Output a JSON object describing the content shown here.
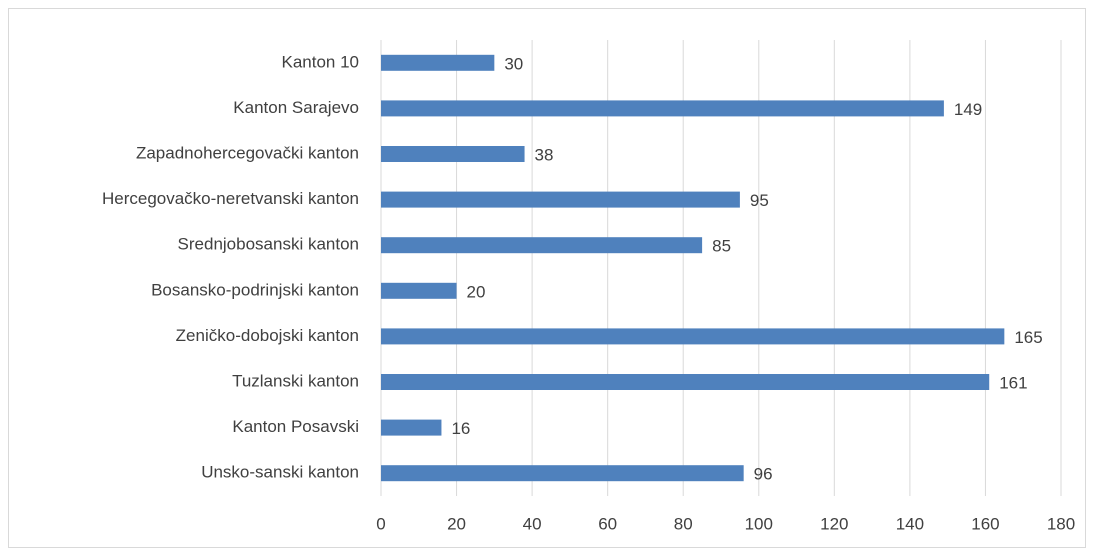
{
  "chart_data": {
    "type": "bar",
    "orientation": "horizontal",
    "categories": [
      "Kanton 10",
      "Kanton Sarajevo",
      "Zapadnohercegovački kanton",
      "Hercegovačko-neretvanski kanton",
      "Srednjobosanski kanton",
      "Bosansko-podrinjski kanton",
      "Zeničko-dobojski kanton",
      "Tuzlanski kanton",
      "Kanton Posavski",
      "Unsko-sanski kanton"
    ],
    "values": [
      30,
      149,
      38,
      95,
      85,
      20,
      165,
      161,
      16,
      96
    ],
    "color": "#4f81bd",
    "xlim": [
      0,
      180
    ],
    "xticks": [
      0,
      20,
      40,
      60,
      80,
      100,
      120,
      140,
      160,
      180
    ],
    "grid": true
  }
}
